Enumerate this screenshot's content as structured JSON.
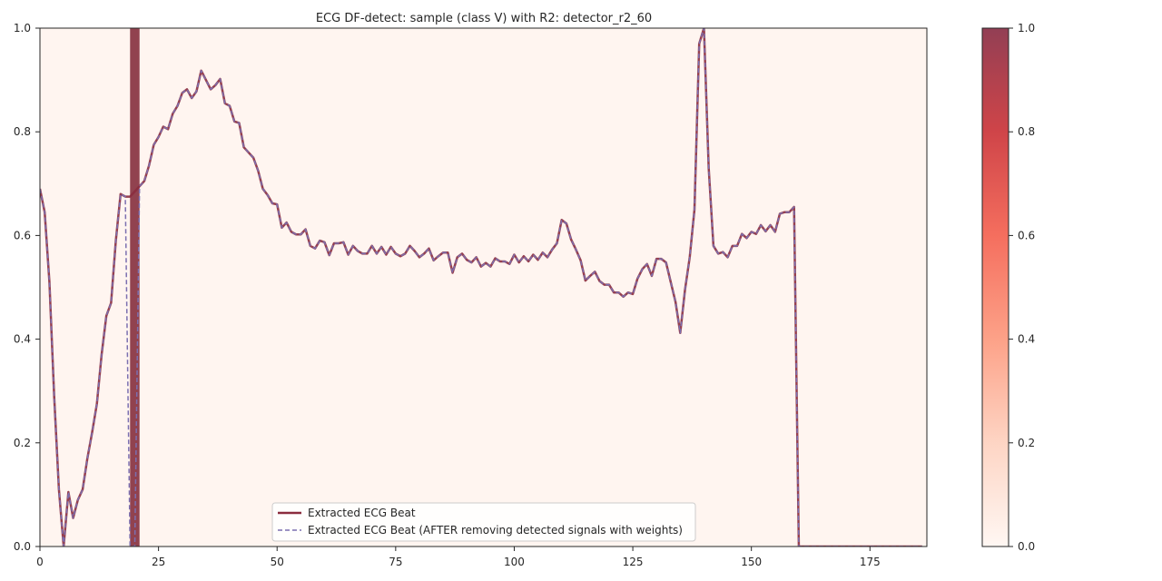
{
  "chart_data": {
    "type": "line",
    "title": "ECG DF-detect: sample (class V) with R2: detector_r2_60",
    "xlabel": "",
    "ylabel": "",
    "xlim": [
      0,
      187
    ],
    "ylim": [
      0,
      1
    ],
    "x_ticks": [
      0,
      25,
      50,
      75,
      100,
      125,
      150,
      175
    ],
    "x_tick_labels": [
      "0",
      "25",
      "50",
      "75",
      "100",
      "125",
      "150",
      "175"
    ],
    "y_ticks": [
      0.0,
      0.2,
      0.4,
      0.6,
      0.8,
      1.0
    ],
    "y_tick_labels": [
      "0.0",
      "0.2",
      "0.4",
      "0.6",
      "0.8",
      "1.0"
    ],
    "grid": false,
    "legend_position": "bottom-center",
    "highlight_band": {
      "x_start": 19,
      "x_end": 21,
      "weight": 1.0
    },
    "colorbar": {
      "range": [
        0,
        1
      ],
      "ticks": [
        0.0,
        0.2,
        0.4,
        0.6,
        0.8,
        1.0
      ],
      "tick_labels": [
        "0.0",
        "0.2",
        "0.4",
        "0.6",
        "0.8",
        "1.0"
      ],
      "colors": [
        "#fff5f0",
        "#fdcab5",
        "#fc8a6a",
        "#f24a36",
        "#c3161b",
        "#7f1d36"
      ]
    },
    "colors": {
      "background": "#fff5f0",
      "beat": "#8b2c3e",
      "beat_after": "#7b6fb0",
      "band": "#7e2232"
    },
    "x": [
      0,
      1,
      2,
      3,
      4,
      5,
      6,
      7,
      8,
      9,
      10,
      11,
      12,
      13,
      14,
      15,
      16,
      17,
      18,
      19,
      20,
      21,
      22,
      23,
      24,
      25,
      26,
      27,
      28,
      29,
      30,
      31,
      32,
      33,
      34,
      35,
      36,
      37,
      38,
      39,
      40,
      41,
      42,
      43,
      44,
      45,
      46,
      47,
      48,
      49,
      50,
      51,
      52,
      53,
      54,
      55,
      56,
      57,
      58,
      59,
      60,
      61,
      62,
      63,
      64,
      65,
      66,
      67,
      68,
      69,
      70,
      71,
      72,
      73,
      74,
      75,
      76,
      77,
      78,
      79,
      80,
      81,
      82,
      83,
      84,
      85,
      86,
      87,
      88,
      89,
      90,
      91,
      92,
      93,
      94,
      95,
      96,
      97,
      98,
      99,
      100,
      101,
      102,
      103,
      104,
      105,
      106,
      107,
      108,
      109,
      110,
      111,
      112,
      113,
      114,
      115,
      116,
      117,
      118,
      119,
      120,
      121,
      122,
      123,
      124,
      125,
      126,
      127,
      128,
      129,
      130,
      131,
      132,
      133,
      134,
      135,
      136,
      137,
      138,
      139,
      140,
      141,
      142,
      143,
      144,
      145,
      146,
      147,
      148,
      149,
      150,
      151,
      152,
      153,
      154,
      155,
      156,
      157,
      158,
      159,
      160,
      161,
      162,
      163,
      164,
      165,
      166,
      167,
      168,
      169,
      170,
      171,
      172,
      173,
      174,
      175,
      176,
      177,
      178,
      179,
      180,
      181,
      182,
      183,
      184,
      185,
      186
    ],
    "series": [
      {
        "name": "Extracted ECG Beat",
        "values": [
          0.69,
          0.645,
          0.51,
          0.29,
          0.11,
          0.0,
          0.105,
          0.055,
          0.09,
          0.11,
          0.17,
          0.22,
          0.275,
          0.37,
          0.445,
          0.47,
          0.59,
          0.68,
          0.675,
          0.675,
          0.685,
          0.695,
          0.705,
          0.735,
          0.775,
          0.79,
          0.81,
          0.805,
          0.835,
          0.85,
          0.875,
          0.882,
          0.865,
          0.878,
          0.918,
          0.9,
          0.882,
          0.89,
          0.902,
          0.855,
          0.85,
          0.82,
          0.817,
          0.77,
          0.76,
          0.75,
          0.725,
          0.69,
          0.678,
          0.662,
          0.66,
          0.615,
          0.625,
          0.607,
          0.602,
          0.602,
          0.612,
          0.58,
          0.575,
          0.59,
          0.587,
          0.562,
          0.585,
          0.585,
          0.587,
          0.563,
          0.58,
          0.57,
          0.565,
          0.565,
          0.58,
          0.565,
          0.578,
          0.563,
          0.578,
          0.565,
          0.56,
          0.565,
          0.58,
          0.57,
          0.558,
          0.565,
          0.575,
          0.552,
          0.56,
          0.567,
          0.567,
          0.528,
          0.558,
          0.565,
          0.553,
          0.548,
          0.558,
          0.54,
          0.547,
          0.54,
          0.556,
          0.55,
          0.55,
          0.545,
          0.563,
          0.548,
          0.56,
          0.55,
          0.563,
          0.553,
          0.567,
          0.558,
          0.573,
          0.585,
          0.63,
          0.623,
          0.592,
          0.573,
          0.552,
          0.513,
          0.522,
          0.53,
          0.512,
          0.505,
          0.505,
          0.49,
          0.49,
          0.482,
          0.49,
          0.487,
          0.517,
          0.535,
          0.545,
          0.522,
          0.555,
          0.555,
          0.548,
          0.51,
          0.472,
          0.412,
          0.495,
          0.558,
          0.65,
          0.97,
          1.0,
          0.73,
          0.58,
          0.565,
          0.568,
          0.558,
          0.58,
          0.58,
          0.603,
          0.595,
          0.607,
          0.603,
          0.62,
          0.608,
          0.62,
          0.607,
          0.642,
          0.645,
          0.645,
          0.655,
          0.0,
          0.0,
          0.0,
          0.0,
          0.0,
          0.0,
          0.0,
          0.0,
          0.0,
          0.0,
          0.0,
          0.0,
          0.0,
          0.0,
          0.0,
          0.0,
          0.0,
          0.0,
          0.0,
          0.0,
          0.0,
          0.0,
          0.0,
          0.0,
          0.0,
          0.0,
          0.0
        ]
      },
      {
        "name": "Extracted ECG Beat (AFTER removing detected signals with weights)",
        "values": [
          0.69,
          0.645,
          0.51,
          0.29,
          0.11,
          0.0,
          0.105,
          0.055,
          0.09,
          0.11,
          0.17,
          0.22,
          0.275,
          0.37,
          0.445,
          0.47,
          0.59,
          0.68,
          0.675,
          0.0,
          0.0,
          0.695,
          0.705,
          0.735,
          0.775,
          0.79,
          0.81,
          0.805,
          0.835,
          0.85,
          0.875,
          0.882,
          0.865,
          0.878,
          0.918,
          0.9,
          0.882,
          0.89,
          0.902,
          0.855,
          0.85,
          0.82,
          0.817,
          0.77,
          0.76,
          0.75,
          0.725,
          0.69,
          0.678,
          0.662,
          0.66,
          0.615,
          0.625,
          0.607,
          0.602,
          0.602,
          0.612,
          0.58,
          0.575,
          0.59,
          0.587,
          0.562,
          0.585,
          0.585,
          0.587,
          0.563,
          0.58,
          0.57,
          0.565,
          0.565,
          0.58,
          0.565,
          0.578,
          0.563,
          0.578,
          0.565,
          0.56,
          0.565,
          0.58,
          0.57,
          0.558,
          0.565,
          0.575,
          0.552,
          0.56,
          0.567,
          0.567,
          0.528,
          0.558,
          0.565,
          0.553,
          0.548,
          0.558,
          0.54,
          0.547,
          0.54,
          0.556,
          0.55,
          0.55,
          0.545,
          0.563,
          0.548,
          0.56,
          0.55,
          0.563,
          0.553,
          0.567,
          0.558,
          0.573,
          0.585,
          0.63,
          0.623,
          0.592,
          0.573,
          0.552,
          0.513,
          0.522,
          0.53,
          0.512,
          0.505,
          0.505,
          0.49,
          0.49,
          0.482,
          0.49,
          0.487,
          0.517,
          0.535,
          0.545,
          0.522,
          0.555,
          0.555,
          0.548,
          0.51,
          0.472,
          0.412,
          0.495,
          0.558,
          0.65,
          0.97,
          1.0,
          0.73,
          0.58,
          0.565,
          0.568,
          0.558,
          0.58,
          0.58,
          0.603,
          0.595,
          0.607,
          0.603,
          0.62,
          0.608,
          0.62,
          0.607,
          0.642,
          0.645,
          0.645,
          0.655,
          0.0,
          0.0,
          0.0,
          0.0,
          0.0,
          0.0,
          0.0,
          0.0,
          0.0,
          0.0,
          0.0,
          0.0,
          0.0,
          0.0,
          0.0,
          0.0,
          0.0,
          0.0,
          0.0,
          0.0,
          0.0,
          0.0,
          0.0,
          0.0,
          0.0,
          0.0,
          0.0
        ]
      }
    ]
  }
}
